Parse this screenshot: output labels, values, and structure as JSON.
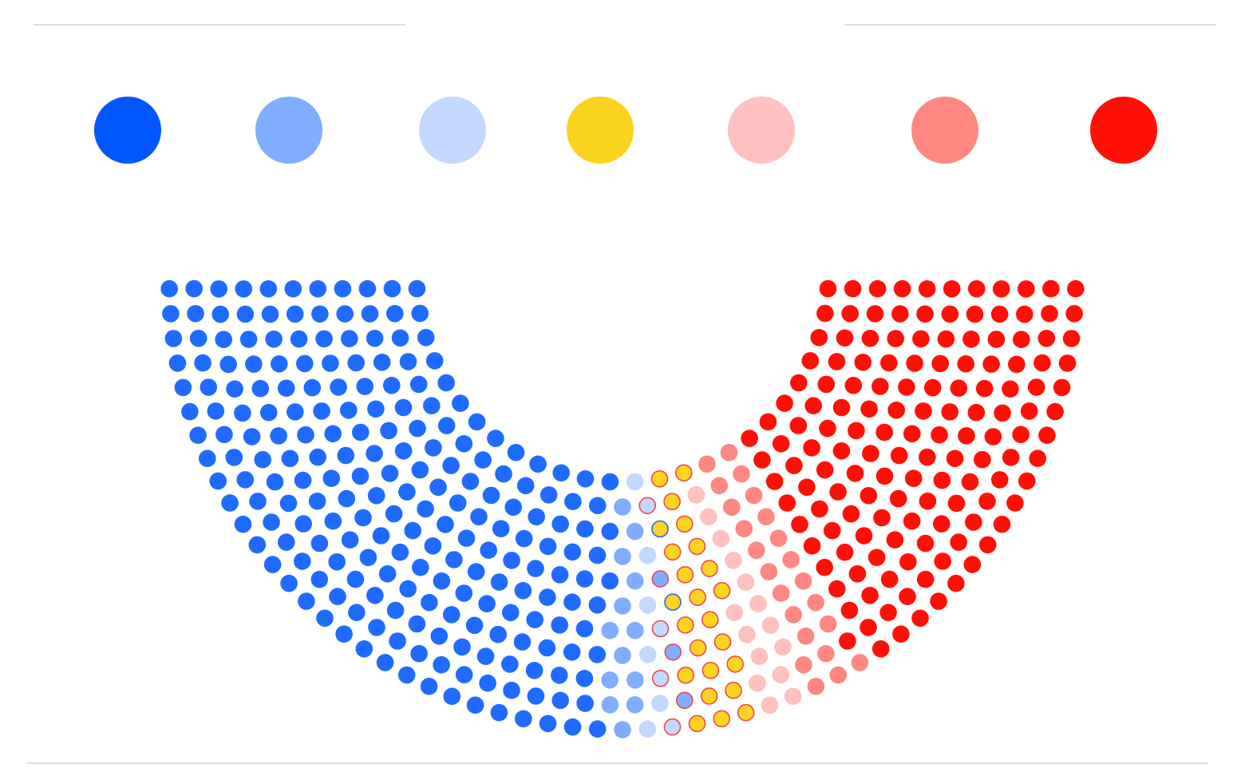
{
  "colors": {
    "blue_dark": "#1f6bff",
    "blue_mid": "#7fadff",
    "blue_light": "#c3d8ff",
    "yellow": "#fcd41f",
    "red_light": "#ffc0c0",
    "red_mid": "#ff8782",
    "red_dark": "#ff1006",
    "outline_blue": "#2a68e8",
    "outline_red": "#f0484a"
  },
  "legend_colors": [
    "#0057ff",
    "#7fadff",
    "#c3d8ff",
    "#fcd41f",
    "#ffc0c0",
    "#ff8782",
    "#ff1006"
  ],
  "chart_data": {
    "type": "parliament",
    "title": "",
    "legend": [
      {
        "label": "",
        "color": "#0057ff"
      },
      {
        "label": "",
        "color": "#7fadff"
      },
      {
        "label": "",
        "color": "#c3d8ff"
      },
      {
        "label": "",
        "color": "#fcd41f"
      },
      {
        "label": "",
        "color": "#ffc0c0"
      },
      {
        "label": "",
        "color": "#ff8782"
      },
      {
        "label": "",
        "color": "#ff1006"
      }
    ],
    "groups": [
      {
        "color": "#1f6bff",
        "seats": 221
      },
      {
        "color": "#7fadff",
        "seats": 13
      },
      {
        "color": "#c3d8ff",
        "seats": 6
      },
      {
        "color": "#c3d8ff",
        "outline": "#f0484a",
        "seats": 4
      },
      {
        "color": "#7fadff",
        "outline": "#f0484a",
        "seats": 3
      },
      {
        "color": "#fcd41f",
        "outline": "#2a68e8",
        "seats": 2
      },
      {
        "color": "#fcd41f",
        "outline": "#f0484a",
        "seats": 22
      },
      {
        "color": "#ffc0c0",
        "seats": 15
      },
      {
        "color": "#ff8782",
        "seats": 23
      },
      {
        "color": "#ff1006",
        "seats": 221
      }
    ]
  }
}
